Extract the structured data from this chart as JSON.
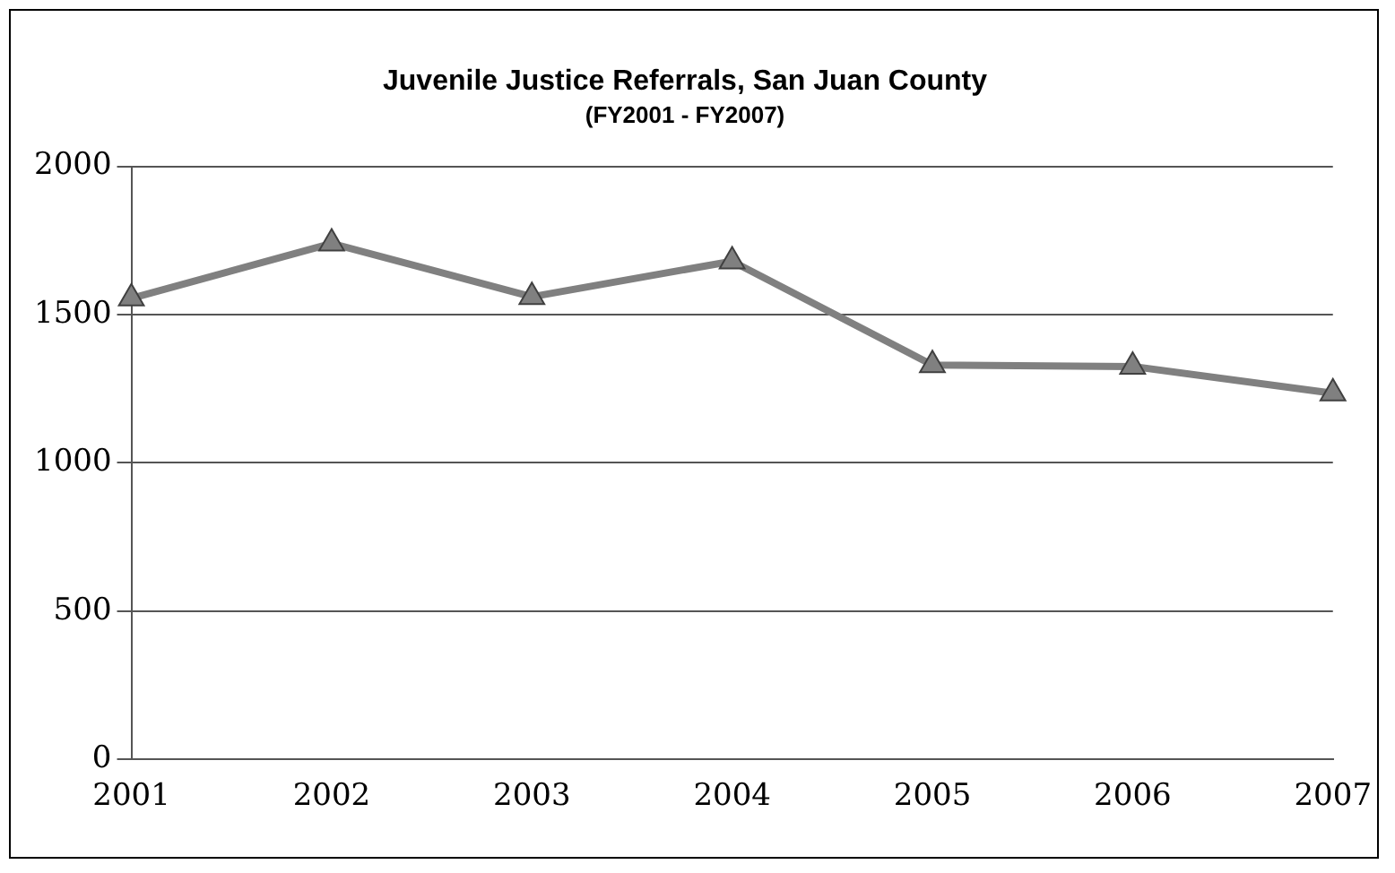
{
  "chart_data": {
    "type": "line",
    "title": "Juvenile Justice Referrals, San Juan County",
    "subtitle": "(FY2001 - FY2007)",
    "categories": [
      "2001",
      "2002",
      "2003",
      "2004",
      "2005",
      "2006",
      "2007"
    ],
    "series": [
      {
        "color": "#808080",
        "values": [
          1555,
          1740,
          1560,
          1680,
          1330,
          1325,
          1235
        ]
      }
    ],
    "ylim": [
      0,
      2000
    ],
    "yticks": [
      0,
      500,
      1000,
      1500,
      2000
    ],
    "grid": "y",
    "legend": false,
    "marker": "triangle",
    "line_style": "solid"
  }
}
